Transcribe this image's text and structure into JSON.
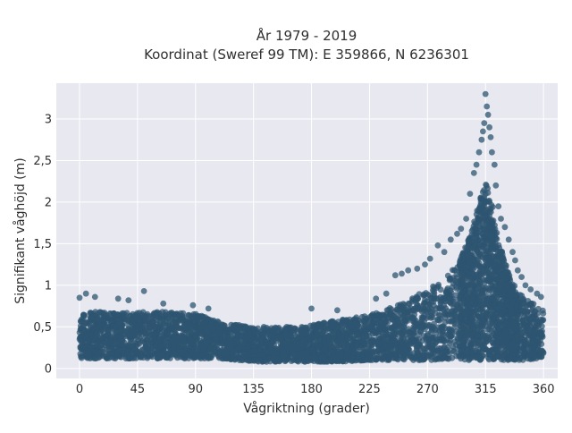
{
  "chart_data": {
    "type": "scatter",
    "title": "År 1979 - 2019",
    "subtitle": "Koordinat (Sweref 99 TM): E 359866, N 6236301",
    "xlabel": "Vågriktning (grader)",
    "ylabel": "Signifikant våghöjd (m)",
    "xlim": [
      -18,
      371
    ],
    "ylim": [
      -0.12,
      3.43
    ],
    "x_ticks": [
      0,
      45,
      90,
      135,
      180,
      225,
      270,
      315,
      360
    ],
    "y_ticks": [
      0,
      0.5,
      1,
      1.5,
      2,
      2.5,
      3
    ],
    "y_tick_labels": [
      "0",
      "0,5",
      "1",
      "1,5",
      "2",
      "2,5",
      "3"
    ],
    "grid": true,
    "marker_color": "#2e5570",
    "background_color": "#e8e8f0",
    "density_envelope": {
      "x": [
        0,
        20,
        45,
        70,
        90,
        110,
        135,
        160,
        180,
        200,
        225,
        240,
        255,
        270,
        285,
        295,
        305,
        310,
        315,
        320,
        325,
        335,
        345,
        355,
        360
      ],
      "y_low": [
        0.12,
        0.12,
        0.12,
        0.12,
        0.12,
        0.12,
        0.08,
        0.08,
        0.08,
        0.08,
        0.1,
        0.1,
        0.1,
        0.1,
        0.1,
        0.1,
        0.1,
        0.1,
        0.1,
        0.1,
        0.1,
        0.1,
        0.1,
        0.12,
        0.12
      ],
      "y_high": [
        0.68,
        0.68,
        0.68,
        0.68,
        0.66,
        0.55,
        0.5,
        0.5,
        0.52,
        0.58,
        0.64,
        0.72,
        0.82,
        0.95,
        1.1,
        1.3,
        1.7,
        2.0,
        2.25,
        2.0,
        1.55,
        1.05,
        0.85,
        0.75,
        0.7
      ]
    },
    "outliers": [
      {
        "x": 0,
        "y": 0.85
      },
      {
        "x": 5,
        "y": 0.9
      },
      {
        "x": 12,
        "y": 0.86
      },
      {
        "x": 30,
        "y": 0.84
      },
      {
        "x": 38,
        "y": 0.82
      },
      {
        "x": 50,
        "y": 0.93
      },
      {
        "x": 65,
        "y": 0.78
      },
      {
        "x": 88,
        "y": 0.76
      },
      {
        "x": 100,
        "y": 0.72
      },
      {
        "x": 180,
        "y": 0.72
      },
      {
        "x": 200,
        "y": 0.7
      },
      {
        "x": 230,
        "y": 0.84
      },
      {
        "x": 238,
        "y": 0.9
      },
      {
        "x": 245,
        "y": 1.12
      },
      {
        "x": 250,
        "y": 1.14
      },
      {
        "x": 255,
        "y": 1.18
      },
      {
        "x": 262,
        "y": 1.2
      },
      {
        "x": 268,
        "y": 1.25
      },
      {
        "x": 272,
        "y": 1.32
      },
      {
        "x": 278,
        "y": 1.48
      },
      {
        "x": 283,
        "y": 1.4
      },
      {
        "x": 288,
        "y": 1.55
      },
      {
        "x": 293,
        "y": 1.62
      },
      {
        "x": 296,
        "y": 1.68
      },
      {
        "x": 300,
        "y": 1.8
      },
      {
        "x": 303,
        "y": 2.1
      },
      {
        "x": 306,
        "y": 2.35
      },
      {
        "x": 308,
        "y": 2.45
      },
      {
        "x": 310,
        "y": 2.6
      },
      {
        "x": 312,
        "y": 2.75
      },
      {
        "x": 313,
        "y": 2.85
      },
      {
        "x": 314,
        "y": 2.95
      },
      {
        "x": 315,
        "y": 3.3
      },
      {
        "x": 316,
        "y": 3.15
      },
      {
        "x": 317,
        "y": 3.05
      },
      {
        "x": 318,
        "y": 2.9
      },
      {
        "x": 319,
        "y": 2.78
      },
      {
        "x": 320,
        "y": 2.6
      },
      {
        "x": 322,
        "y": 2.45
      },
      {
        "x": 323,
        "y": 2.2
      },
      {
        "x": 325,
        "y": 1.95
      },
      {
        "x": 327,
        "y": 1.8
      },
      {
        "x": 330,
        "y": 1.7
      },
      {
        "x": 333,
        "y": 1.55
      },
      {
        "x": 336,
        "y": 1.4
      },
      {
        "x": 338,
        "y": 1.3
      },
      {
        "x": 340,
        "y": 1.18
      },
      {
        "x": 343,
        "y": 1.1
      },
      {
        "x": 346,
        "y": 1.0
      },
      {
        "x": 350,
        "y": 0.95
      },
      {
        "x": 355,
        "y": 0.9
      },
      {
        "x": 358,
        "y": 0.86
      }
    ]
  }
}
